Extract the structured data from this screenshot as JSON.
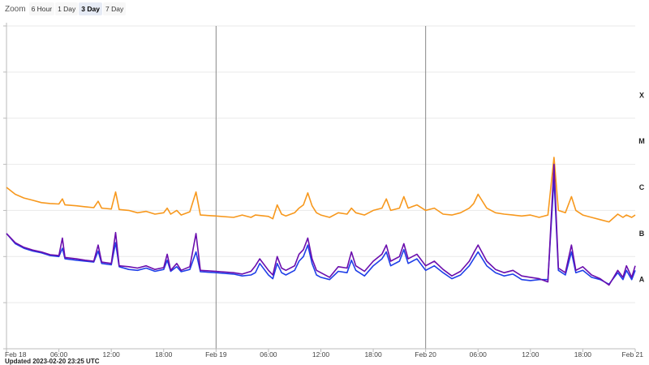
{
  "zoom": {
    "label": "Zoom",
    "options": [
      "6 Hour",
      "1 Day",
      "3 Day",
      "7 Day"
    ],
    "selected": "3 Day"
  },
  "updated_text": "Updated 2023-02-20 23:25 UTC",
  "colors": {
    "long_channel": "#f7981d",
    "short_channel": "#1f3fe8",
    "short_overlay": "#6a0dad",
    "grid": "#e9e9e9",
    "day_divider": "#888888",
    "axis": "#bbbbbb"
  },
  "chart_data": {
    "type": "line",
    "x_unit": "hours since Feb 18 00:00 UTC",
    "xlim": [
      0,
      72
    ],
    "x_ticks": [
      {
        "hour": 0,
        "label": "Feb 18"
      },
      {
        "hour": 6,
        "label": "06:00"
      },
      {
        "hour": 12,
        "label": "12:00"
      },
      {
        "hour": 18,
        "label": "18:00"
      },
      {
        "hour": 24,
        "label": "Feb 19"
      },
      {
        "hour": 30,
        "label": "06:00"
      },
      {
        "hour": 36,
        "label": "12:00"
      },
      {
        "hour": 42,
        "label": "18:00"
      },
      {
        "hour": 48,
        "label": "Feb 20"
      },
      {
        "hour": 54,
        "label": "06:00"
      },
      {
        "hour": 60,
        "label": "12:00"
      },
      {
        "hour": 66,
        "label": "18:00"
      },
      {
        "hour": 72,
        "label": "Feb 21"
      }
    ],
    "y_scale": "log",
    "ylim_log10": [
      -9,
      -2
    ],
    "class_labels": [
      {
        "label": "X",
        "log10": -3.5
      },
      {
        "label": "M",
        "log10": -4.5
      },
      {
        "label": "C",
        "log10": -5.5
      },
      {
        "label": "B",
        "log10": -6.5
      },
      {
        "label": "A",
        "log10": -7.5
      }
    ],
    "series": [
      {
        "key": "long",
        "points": [
          [
            0,
            -5.5
          ],
          [
            1,
            -5.65
          ],
          [
            2,
            -5.73
          ],
          [
            3,
            -5.78
          ],
          [
            4,
            -5.83
          ],
          [
            5,
            -5.85
          ],
          [
            6,
            -5.86
          ],
          [
            6.4,
            -5.75
          ],
          [
            6.7,
            -5.88
          ],
          [
            8,
            -5.9
          ],
          [
            9,
            -5.92
          ],
          [
            10,
            -5.94
          ],
          [
            10.5,
            -5.8
          ],
          [
            10.9,
            -5.95
          ],
          [
            12,
            -5.97
          ],
          [
            12.5,
            -5.6
          ],
          [
            12.9,
            -5.98
          ],
          [
            14,
            -6.0
          ],
          [
            15,
            -6.05
          ],
          [
            16,
            -6.02
          ],
          [
            17,
            -6.08
          ],
          [
            18,
            -6.05
          ],
          [
            18.4,
            -5.95
          ],
          [
            18.8,
            -6.08
          ],
          [
            19.5,
            -6.0
          ],
          [
            20,
            -6.1
          ],
          [
            21,
            -6.03
          ],
          [
            21.7,
            -5.6
          ],
          [
            22.2,
            -6.1
          ],
          [
            24,
            -6.12
          ],
          [
            26,
            -6.15
          ],
          [
            27,
            -6.1
          ],
          [
            28,
            -6.15
          ],
          [
            28.5,
            -6.1
          ],
          [
            30,
            -6.13
          ],
          [
            30.5,
            -6.18
          ],
          [
            31,
            -5.88
          ],
          [
            31.5,
            -6.08
          ],
          [
            32,
            -6.12
          ],
          [
            33,
            -6.05
          ],
          [
            33.5,
            -5.95
          ],
          [
            34,
            -5.88
          ],
          [
            34.5,
            -5.62
          ],
          [
            35,
            -5.9
          ],
          [
            35.5,
            -6.05
          ],
          [
            36,
            -6.1
          ],
          [
            37,
            -6.15
          ],
          [
            38,
            -6.05
          ],
          [
            39,
            -6.08
          ],
          [
            39.5,
            -5.95
          ],
          [
            40,
            -6.05
          ],
          [
            41,
            -6.1
          ],
          [
            42,
            -6.0
          ],
          [
            43,
            -5.95
          ],
          [
            43.5,
            -5.75
          ],
          [
            44,
            -6.0
          ],
          [
            45,
            -5.95
          ],
          [
            45.5,
            -5.7
          ],
          [
            46,
            -5.95
          ],
          [
            47,
            -5.88
          ],
          [
            48,
            -6.0
          ],
          [
            49,
            -5.95
          ],
          [
            50,
            -6.08
          ],
          [
            51,
            -6.1
          ],
          [
            52,
            -6.05
          ],
          [
            53,
            -5.95
          ],
          [
            53.5,
            -5.85
          ],
          [
            54,
            -5.65
          ],
          [
            55,
            -5.95
          ],
          [
            56,
            -6.05
          ],
          [
            57,
            -6.08
          ],
          [
            58,
            -6.1
          ],
          [
            59,
            -6.12
          ],
          [
            60,
            -6.1
          ],
          [
            61,
            -6.15
          ],
          [
            62,
            -6.1
          ],
          [
            62.7,
            -4.85
          ],
          [
            63.2,
            -6.0
          ],
          [
            64,
            -6.05
          ],
          [
            64.7,
            -5.7
          ],
          [
            65.2,
            -6.0
          ],
          [
            66,
            -6.1
          ],
          [
            67,
            -6.15
          ],
          [
            68,
            -6.2
          ],
          [
            69,
            -6.25
          ],
          [
            70,
            -6.08
          ],
          [
            70.6,
            -6.15
          ],
          [
            71,
            -6.1
          ],
          [
            71.6,
            -6.15
          ],
          [
            72,
            -6.1
          ]
        ]
      },
      {
        "key": "short",
        "points": [
          [
            0,
            -6.5
          ],
          [
            1,
            -6.72
          ],
          [
            2,
            -6.82
          ],
          [
            3,
            -6.88
          ],
          [
            4,
            -6.92
          ],
          [
            5,
            -6.98
          ],
          [
            6,
            -7.0
          ],
          [
            6.4,
            -6.82
          ],
          [
            6.7,
            -7.05
          ],
          [
            8,
            -7.08
          ],
          [
            9,
            -7.1
          ],
          [
            10,
            -7.12
          ],
          [
            10.5,
            -6.88
          ],
          [
            10.9,
            -7.15
          ],
          [
            12,
            -7.18
          ],
          [
            12.5,
            -6.7
          ],
          [
            12.9,
            -7.22
          ],
          [
            14,
            -7.28
          ],
          [
            15,
            -7.3
          ],
          [
            16,
            -7.25
          ],
          [
            17,
            -7.32
          ],
          [
            18,
            -7.28
          ],
          [
            18.4,
            -7.08
          ],
          [
            18.8,
            -7.32
          ],
          [
            19.5,
            -7.22
          ],
          [
            20,
            -7.33
          ],
          [
            21,
            -7.28
          ],
          [
            21.7,
            -6.9
          ],
          [
            22.2,
            -7.33
          ],
          [
            24,
            -7.35
          ],
          [
            26,
            -7.38
          ],
          [
            27,
            -7.42
          ],
          [
            28,
            -7.4
          ],
          [
            28.5,
            -7.35
          ],
          [
            29,
            -7.15
          ],
          [
            30,
            -7.4
          ],
          [
            30.5,
            -7.48
          ],
          [
            31,
            -7.15
          ],
          [
            31.5,
            -7.35
          ],
          [
            32,
            -7.4
          ],
          [
            33,
            -7.3
          ],
          [
            33.5,
            -7.1
          ],
          [
            34,
            -7.0
          ],
          [
            34.5,
            -6.75
          ],
          [
            35,
            -7.15
          ],
          [
            35.5,
            -7.4
          ],
          [
            36,
            -7.45
          ],
          [
            37,
            -7.5
          ],
          [
            38,
            -7.32
          ],
          [
            39,
            -7.35
          ],
          [
            39.5,
            -7.08
          ],
          [
            40,
            -7.3
          ],
          [
            41,
            -7.42
          ],
          [
            42,
            -7.2
          ],
          [
            43,
            -7.05
          ],
          [
            43.5,
            -6.9
          ],
          [
            44,
            -7.2
          ],
          [
            45,
            -7.1
          ],
          [
            45.5,
            -6.85
          ],
          [
            46,
            -7.15
          ],
          [
            47,
            -7.05
          ],
          [
            48,
            -7.3
          ],
          [
            49,
            -7.2
          ],
          [
            50,
            -7.35
          ],
          [
            51,
            -7.48
          ],
          [
            52,
            -7.4
          ],
          [
            53,
            -7.2
          ],
          [
            53.5,
            -7.05
          ],
          [
            54,
            -6.9
          ],
          [
            55,
            -7.2
          ],
          [
            56,
            -7.35
          ],
          [
            57,
            -7.42
          ],
          [
            58,
            -7.38
          ],
          [
            59,
            -7.5
          ],
          [
            60,
            -7.52
          ],
          [
            61,
            -7.5
          ],
          [
            62,
            -7.5
          ],
          [
            62.7,
            -5.3
          ],
          [
            63.2,
            -7.3
          ],
          [
            64,
            -7.4
          ],
          [
            64.7,
            -6.9
          ],
          [
            65.2,
            -7.35
          ],
          [
            66,
            -7.3
          ],
          [
            67,
            -7.45
          ],
          [
            68,
            -7.5
          ],
          [
            69,
            -7.6
          ],
          [
            70,
            -7.35
          ],
          [
            70.6,
            -7.5
          ],
          [
            71,
            -7.3
          ],
          [
            71.6,
            -7.5
          ],
          [
            72,
            -7.3
          ]
        ]
      },
      {
        "key": "short_overlay",
        "points": [
          [
            0,
            -6.5
          ],
          [
            1,
            -6.7
          ],
          [
            2,
            -6.8
          ],
          [
            3,
            -6.86
          ],
          [
            4,
            -6.9
          ],
          [
            5,
            -6.96
          ],
          [
            6,
            -6.98
          ],
          [
            6.4,
            -6.6
          ],
          [
            6.7,
            -7.02
          ],
          [
            8,
            -7.05
          ],
          [
            9,
            -7.08
          ],
          [
            10,
            -7.1
          ],
          [
            10.5,
            -6.75
          ],
          [
            10.9,
            -7.12
          ],
          [
            12,
            -7.15
          ],
          [
            12.5,
            -6.48
          ],
          [
            12.9,
            -7.2
          ],
          [
            14,
            -7.22
          ],
          [
            15,
            -7.25
          ],
          [
            16,
            -7.2
          ],
          [
            17,
            -7.28
          ],
          [
            18,
            -7.24
          ],
          [
            18.4,
            -6.95
          ],
          [
            18.8,
            -7.3
          ],
          [
            19.5,
            -7.15
          ],
          [
            20,
            -7.3
          ],
          [
            21,
            -7.22
          ],
          [
            21.7,
            -6.5
          ],
          [
            22.2,
            -7.3
          ],
          [
            24,
            -7.32
          ],
          [
            26,
            -7.35
          ],
          [
            27,
            -7.38
          ],
          [
            28,
            -7.32
          ],
          [
            28.5,
            -7.2
          ],
          [
            29,
            -7.05
          ],
          [
            30,
            -7.3
          ],
          [
            30.5,
            -7.4
          ],
          [
            31,
            -7.0
          ],
          [
            31.5,
            -7.25
          ],
          [
            32,
            -7.3
          ],
          [
            33,
            -7.2
          ],
          [
            33.5,
            -6.95
          ],
          [
            34,
            -6.85
          ],
          [
            34.5,
            -6.6
          ],
          [
            35,
            -7.05
          ],
          [
            35.5,
            -7.3
          ],
          [
            36,
            -7.35
          ],
          [
            37,
            -7.45
          ],
          [
            38,
            -7.22
          ],
          [
            39,
            -7.25
          ],
          [
            39.5,
            -6.9
          ],
          [
            40,
            -7.2
          ],
          [
            41,
            -7.32
          ],
          [
            42,
            -7.1
          ],
          [
            43,
            -6.95
          ],
          [
            43.5,
            -6.75
          ],
          [
            44,
            -7.1
          ],
          [
            45,
            -7.0
          ],
          [
            45.5,
            -6.72
          ],
          [
            46,
            -7.05
          ],
          [
            47,
            -6.95
          ],
          [
            48,
            -7.2
          ],
          [
            49,
            -7.1
          ],
          [
            50,
            -7.28
          ],
          [
            51,
            -7.42
          ],
          [
            52,
            -7.32
          ],
          [
            53,
            -7.1
          ],
          [
            53.5,
            -6.92
          ],
          [
            54,
            -6.75
          ],
          [
            55,
            -7.1
          ],
          [
            56,
            -7.28
          ],
          [
            57,
            -7.35
          ],
          [
            58,
            -7.3
          ],
          [
            59,
            -7.42
          ],
          [
            60,
            -7.45
          ],
          [
            61,
            -7.48
          ],
          [
            62,
            -7.55
          ],
          [
            62.7,
            -5.0
          ],
          [
            63.2,
            -7.25
          ],
          [
            64,
            -7.35
          ],
          [
            64.7,
            -6.75
          ],
          [
            65.2,
            -7.3
          ],
          [
            66,
            -7.22
          ],
          [
            67,
            -7.4
          ],
          [
            68,
            -7.48
          ],
          [
            69,
            -7.62
          ],
          [
            70,
            -7.3
          ],
          [
            70.6,
            -7.45
          ],
          [
            71,
            -7.2
          ],
          [
            71.6,
            -7.45
          ],
          [
            72,
            -7.2
          ]
        ]
      }
    ]
  }
}
